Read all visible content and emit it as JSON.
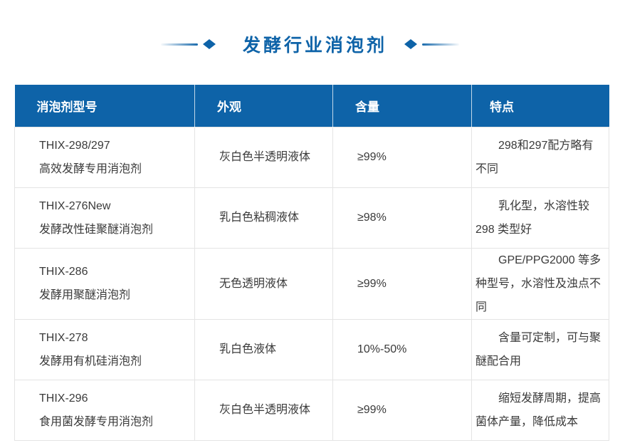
{
  "title": {
    "text": "发酵行业消泡剂"
  },
  "colors": {
    "brand_blue": "#0e63a8",
    "table_border": "#e4e4e4",
    "body_text": "#3a3a3a",
    "header_text": "#ffffff"
  },
  "icons": {
    "left_diamond": "diamond-icon",
    "right_diamond": "diamond-icon"
  },
  "table": {
    "columns": [
      "消泡剂型号",
      "外观",
      "含量",
      "特点"
    ],
    "rows": [
      {
        "model": "THIX-298/297",
        "name": "高效发酵专用消泡剂",
        "appearance": "灰白色半透明液体",
        "content": "≥99%",
        "features": "298和297配方略有不同"
      },
      {
        "model": "THIX-276New",
        "name": "发酵改性硅聚醚消泡剂",
        "appearance": "乳白色粘稠液体",
        "content": "≥98%",
        "features": "乳化型，水溶性较298 类型好"
      },
      {
        "model": "THIX-286",
        "name": "发酵用聚醚消泡剂",
        "appearance": "无色透明液体",
        "content": "≥99%",
        "features": "GPE/PPG2000 等多种型号，水溶性及浊点不同"
      },
      {
        "model": "THIX-278",
        "name": "发酵用有机硅消泡剂",
        "appearance": "乳白色液体",
        "content": "10%-50%",
        "features": "含量可定制，可与聚醚配合用"
      },
      {
        "model": "THIX-296",
        "name": "食用菌发酵专用消泡剂",
        "appearance": "灰白色半透明液体",
        "content": "≥99%",
        "features": "缩短发酵周期，提高菌体产量，降低成本"
      }
    ]
  }
}
